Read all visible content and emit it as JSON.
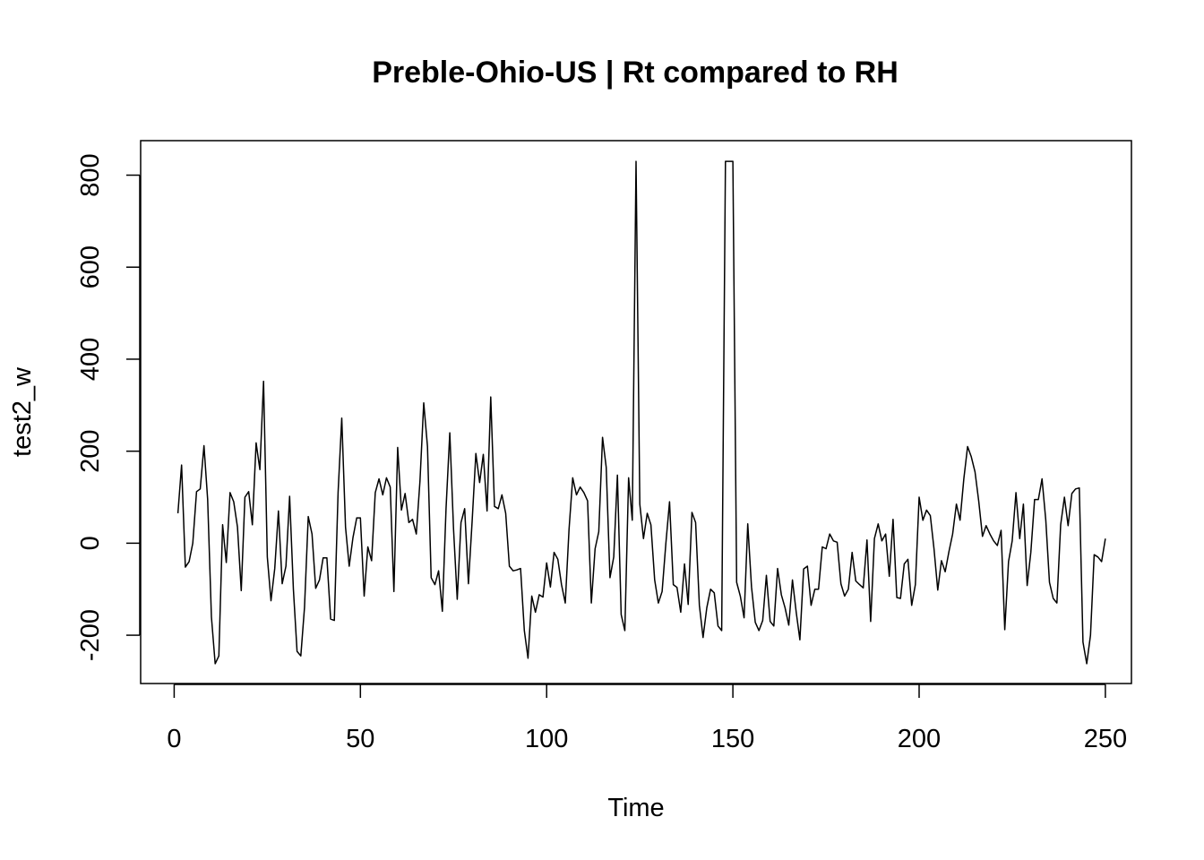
{
  "chart_data": {
    "type": "line",
    "title": "Preble-Ohio-US | Rt compared to RH",
    "xlabel": "Time",
    "ylabel": "test2_w",
    "xlim": [
      -9,
      257
    ],
    "ylim": [
      -305,
      875
    ],
    "x_ticks": [
      0,
      50,
      100,
      150,
      200,
      250
    ],
    "x_tick_labels": [
      "0",
      "50",
      "100",
      "150",
      "200",
      "250"
    ],
    "y_ticks": [
      -200,
      0,
      200,
      400,
      600,
      800
    ],
    "y_tick_labels": [
      "-200",
      "0",
      "200",
      "400",
      "600",
      "800"
    ],
    "grid": false,
    "line_color": "#000000",
    "series": [
      {
        "x_start": 1,
        "values": [
          65,
          170,
          -52,
          -40,
          0,
          112,
          118,
          212,
          95,
          -160,
          -262,
          -245,
          40,
          -42,
          110,
          90,
          35,
          -103,
          100,
          112,
          40,
          218,
          160,
          352,
          -30,
          -125,
          -55,
          70,
          -88,
          -50,
          102,
          -100,
          -235,
          -245,
          -140,
          58,
          20,
          -98,
          -80,
          -32,
          -32,
          -165,
          -168,
          110,
          272,
          35,
          -50,
          12,
          55,
          55,
          -115,
          -8,
          -38,
          110,
          140,
          105,
          142,
          122,
          -105,
          208,
          72,
          108,
          45,
          52,
          20,
          135,
          305,
          210,
          -75,
          -90,
          -60,
          -148,
          75,
          240,
          30,
          -122,
          45,
          75,
          -88,
          50,
          195,
          132,
          193,
          70,
          318,
          80,
          75,
          105,
          65,
          -50,
          -60,
          -58,
          -55,
          -190,
          -250,
          -115,
          -150,
          -112,
          -117,
          -43,
          -95,
          -20,
          -35,
          -90,
          -130,
          30,
          142,
          105,
          122,
          110,
          92,
          -130,
          -12,
          25,
          230,
          165,
          -75,
          -30,
          148,
          -155,
          -190,
          142,
          50,
          830,
          85,
          10,
          65,
          40,
          -80,
          -130,
          -105,
          0,
          90,
          -90,
          -96,
          -150,
          -45,
          -133,
          67,
          45,
          -135,
          -205,
          -140,
          -100,
          -108,
          -180,
          -190,
          830,
          830,
          830,
          -85,
          -115,
          -162,
          42,
          -95,
          -172,
          -190,
          -168,
          -70,
          -170,
          -180,
          -55,
          -112,
          -140,
          -178,
          -80,
          -150,
          -210,
          -56,
          -50,
          -135,
          -100,
          -100,
          -8,
          -12,
          20,
          5,
          2,
          -88,
          -115,
          -100,
          -20,
          -82,
          -90,
          -97,
          7,
          -170,
          10,
          42,
          5,
          20,
          -72,
          52,
          -118,
          -120,
          -45,
          -35,
          -135,
          -90,
          100,
          50,
          72,
          60,
          -12,
          -102,
          -38,
          -62,
          -18,
          20,
          85,
          50,
          140,
          210,
          188,
          155,
          92,
          15,
          38,
          20,
          5,
          -5,
          28,
          -188,
          -40,
          5,
          110,
          10,
          85,
          -92,
          -20,
          95,
          95,
          140,
          50,
          -85,
          -120,
          -130,
          40,
          100,
          38,
          108,
          118,
          120,
          -215,
          -262,
          -200,
          -25,
          -30,
          -40,
          10
        ]
      }
    ]
  }
}
